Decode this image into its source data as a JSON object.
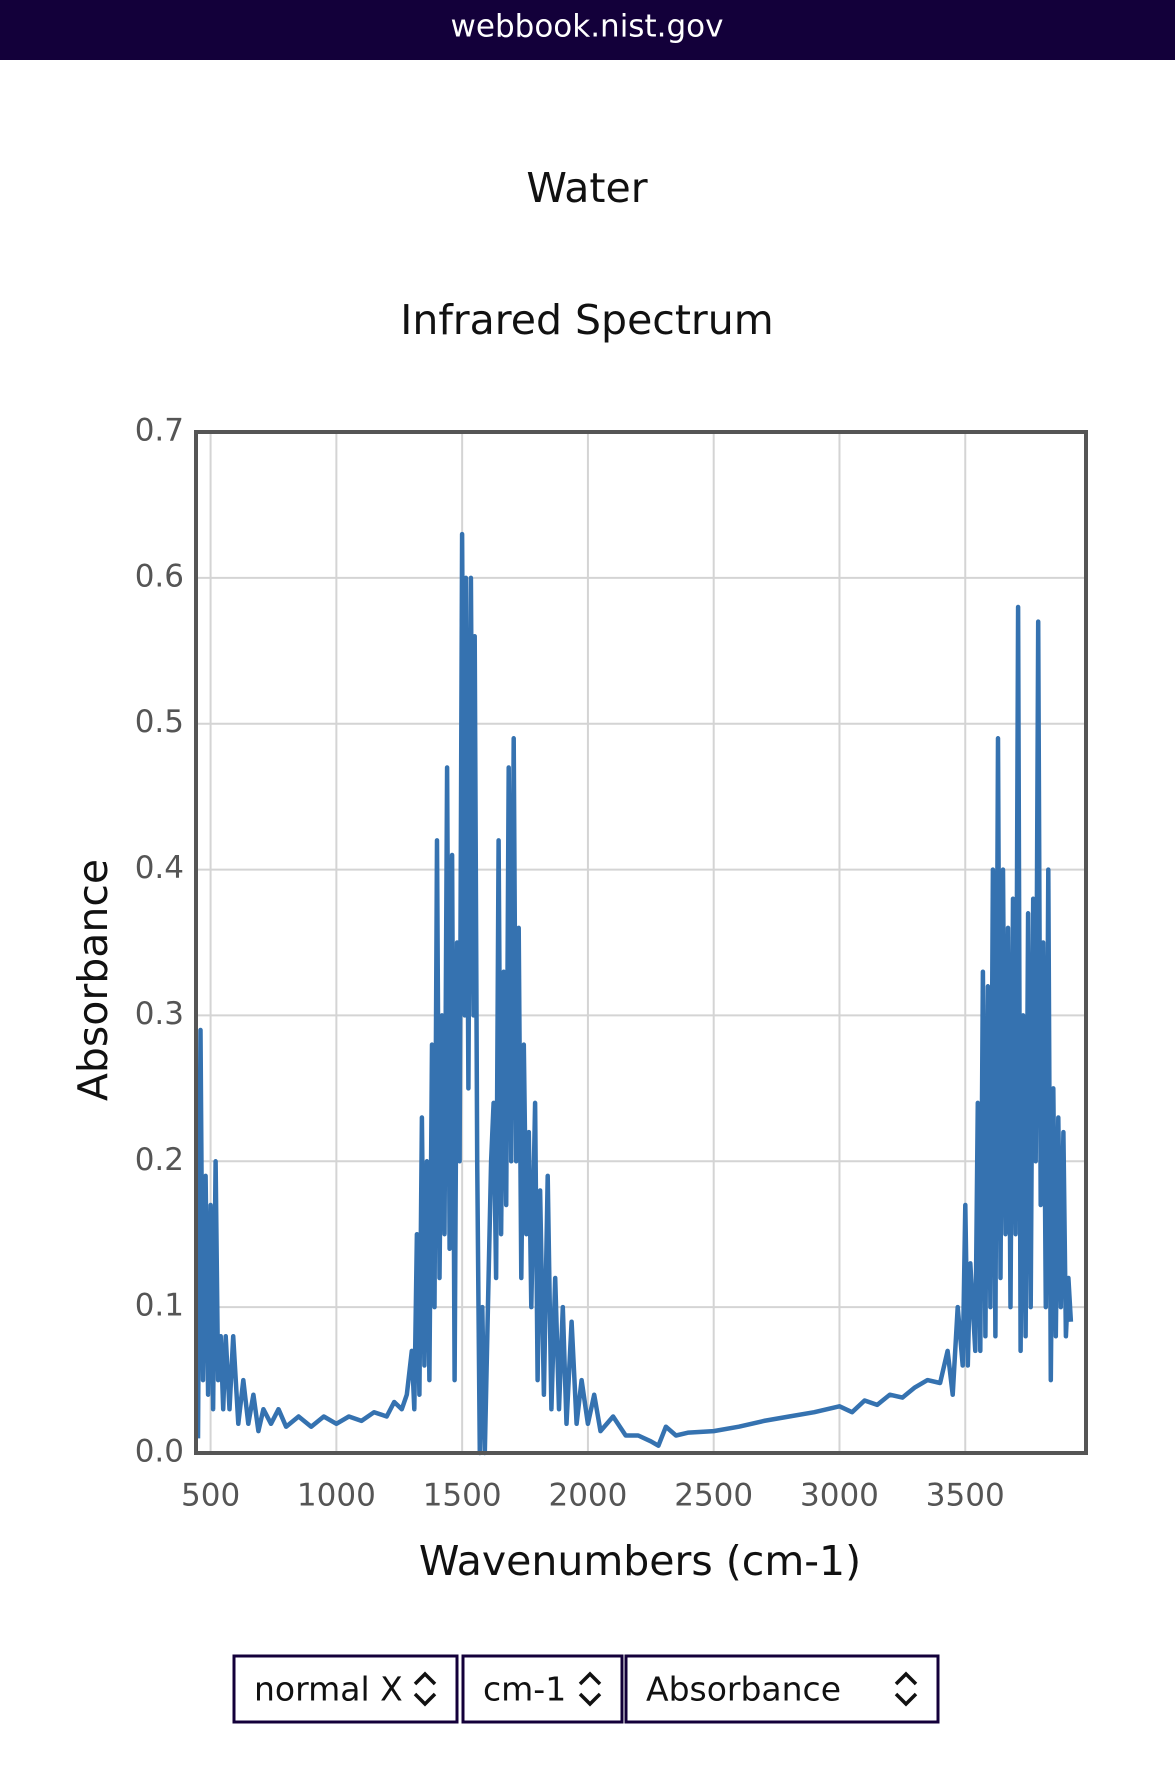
{
  "header": {
    "url": "webbook.nist.gov"
  },
  "chart_data": {
    "type": "line",
    "title": "Water",
    "subtitle": "Infrared Spectrum",
    "x_label": "Wavenumbers (cm-1)",
    "y_label": "Absorbance",
    "xlim": [
      442,
      3980
    ],
    "ylim": [
      0,
      0.7
    ],
    "xticks": [
      500,
      1000,
      1500,
      2000,
      2500,
      3000,
      3500
    ],
    "yticks": [
      {
        "value": 0,
        "label": "0.0"
      },
      0.1,
      0.2,
      0.3,
      0.4,
      0.5,
      0.6,
      0.7
    ],
    "grid": true,
    "series": [
      {
        "color": "#3572b0",
        "x": [
          450,
          460,
          470,
          480,
          490,
          500,
          510,
          520,
          530,
          540,
          550,
          560,
          575,
          590,
          610,
          630,
          650,
          670,
          690,
          710,
          740,
          770,
          800,
          850,
          900,
          950,
          1000,
          1050,
          1100,
          1150,
          1200,
          1230,
          1260,
          1280,
          1300,
          1310,
          1320,
          1330,
          1340,
          1350,
          1360,
          1370,
          1380,
          1390,
          1400,
          1410,
          1420,
          1430,
          1440,
          1450,
          1460,
          1470,
          1480,
          1490,
          1500,
          1510,
          1515,
          1525,
          1535,
          1545,
          1550,
          1560,
          1570,
          1580,
          1590,
          1600,
          1615,
          1625,
          1635,
          1645,
          1655,
          1665,
          1675,
          1685,
          1695,
          1705,
          1715,
          1725,
          1735,
          1745,
          1755,
          1765,
          1775,
          1790,
          1800,
          1810,
          1825,
          1840,
          1855,
          1870,
          1885,
          1900,
          1915,
          1935,
          1955,
          1975,
          2000,
          2025,
          2050,
          2100,
          2150,
          2200,
          2250,
          2280,
          2310,
          2350,
          2400,
          2500,
          2600,
          2700,
          2800,
          2900,
          3000,
          3050,
          3100,
          3150,
          3200,
          3250,
          3300,
          3350,
          3400,
          3430,
          3450,
          3470,
          3490,
          3500,
          3510,
          3520,
          3540,
          3550,
          3560,
          3570,
          3580,
          3590,
          3600,
          3610,
          3620,
          3630,
          3640,
          3650,
          3660,
          3670,
          3680,
          3690,
          3700,
          3710,
          3720,
          3730,
          3740,
          3750,
          3760,
          3770,
          3780,
          3790,
          3800,
          3810,
          3820,
          3830,
          3840,
          3850,
          3860,
          3870,
          3880,
          3890,
          3900,
          3910,
          3920
        ],
        "values": [
          0.01,
          0.29,
          0.05,
          0.19,
          0.04,
          0.17,
          0.03,
          0.2,
          0.05,
          0.08,
          0.03,
          0.08,
          0.03,
          0.08,
          0.02,
          0.05,
          0.02,
          0.04,
          0.015,
          0.03,
          0.02,
          0.03,
          0.018,
          0.025,
          0.018,
          0.025,
          0.02,
          0.025,
          0.022,
          0.028,
          0.025,
          0.035,
          0.03,
          0.04,
          0.07,
          0.03,
          0.15,
          0.04,
          0.23,
          0.06,
          0.2,
          0.05,
          0.28,
          0.1,
          0.42,
          0.12,
          0.3,
          0.15,
          0.47,
          0.14,
          0.41,
          0.05,
          0.35,
          0.2,
          0.63,
          0.3,
          0.6,
          0.25,
          0.6,
          0.3,
          0.56,
          0.2,
          0.0,
          0.1,
          0.0,
          0.08,
          0.2,
          0.24,
          0.12,
          0.42,
          0.15,
          0.33,
          0.17,
          0.47,
          0.2,
          0.49,
          0.2,
          0.36,
          0.12,
          0.28,
          0.15,
          0.22,
          0.1,
          0.24,
          0.05,
          0.18,
          0.04,
          0.19,
          0.03,
          0.12,
          0.03,
          0.1,
          0.02,
          0.09,
          0.02,
          0.05,
          0.02,
          0.04,
          0.015,
          0.025,
          0.012,
          0.012,
          0.008,
          0.005,
          0.018,
          0.012,
          0.014,
          0.015,
          0.018,
          0.022,
          0.025,
          0.028,
          0.032,
          0.028,
          0.036,
          0.033,
          0.04,
          0.038,
          0.045,
          0.05,
          0.048,
          0.07,
          0.04,
          0.1,
          0.06,
          0.17,
          0.06,
          0.13,
          0.07,
          0.24,
          0.07,
          0.33,
          0.08,
          0.32,
          0.1,
          0.4,
          0.08,
          0.49,
          0.12,
          0.4,
          0.15,
          0.36,
          0.1,
          0.38,
          0.15,
          0.58,
          0.07,
          0.3,
          0.08,
          0.37,
          0.1,
          0.38,
          0.2,
          0.57,
          0.17,
          0.35,
          0.1,
          0.4,
          0.05,
          0.25,
          0.08,
          0.23,
          0.1,
          0.22,
          0.08,
          0.12,
          0.09
        ]
      }
    ]
  },
  "controls": [
    "normal X",
    "cm-1",
    "Absorbance"
  ]
}
